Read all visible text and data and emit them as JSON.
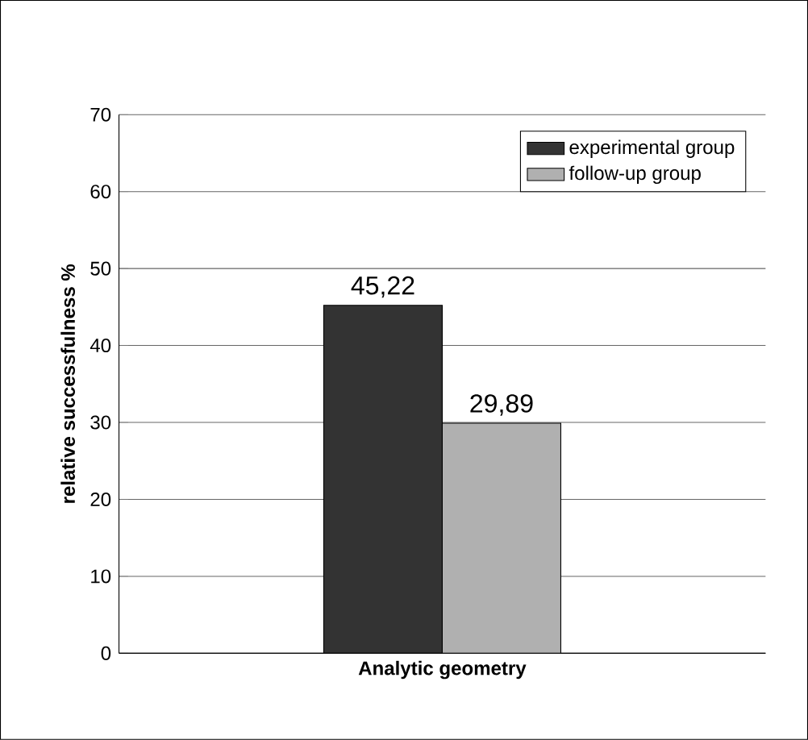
{
  "chart_data": {
    "type": "bar",
    "categories": [
      "Analytic geometry"
    ],
    "series": [
      {
        "name": "experimental group",
        "color": "#333333",
        "values": [
          45.22
        ],
        "value_labels": [
          "45,22"
        ]
      },
      {
        "name": "follow-up group",
        "color": "#b0b0b0",
        "values": [
          29.89
        ],
        "value_labels": [
          "29,89"
        ]
      }
    ],
    "ylabel": "relative  successfulness %",
    "ylim": [
      0,
      70
    ],
    "yticks": [
      0,
      10,
      20,
      30,
      40,
      50,
      60,
      70
    ],
    "grid": "y",
    "legend": "top right"
  }
}
